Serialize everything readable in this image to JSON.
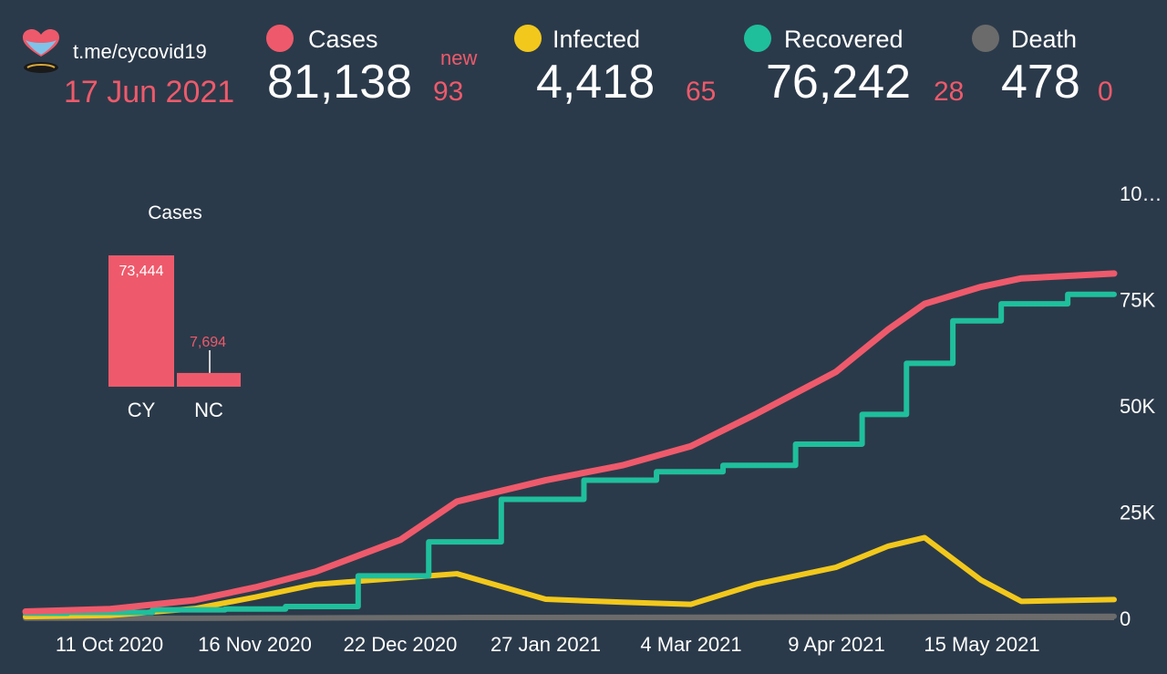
{
  "header": {
    "logo_icon": "cyprus-heart-icon",
    "channel": "t.me/cycovid19",
    "date": "17 Jun 2021"
  },
  "stats": [
    {
      "key": "cases",
      "label": "Cases",
      "value": "81,138",
      "delta": "93",
      "new_label": "new",
      "color": "#ee5a6b"
    },
    {
      "key": "infected",
      "label": "Infected",
      "value": "4,418",
      "delta": "65",
      "color": "#f2c81c"
    },
    {
      "key": "recovered",
      "label": "Recovered",
      "value": "76,242",
      "delta": "28",
      "color": "#1fbf9c"
    },
    {
      "key": "death",
      "label": "Death",
      "value": "478",
      "delta": "0",
      "color": "#6b6b6b"
    }
  ],
  "chart_data": [
    {
      "type": "bar",
      "title": "Cases",
      "categories": [
        "CY",
        "NC"
      ],
      "values": [
        73444,
        7694
      ],
      "value_labels": [
        "73,444",
        "7,694"
      ],
      "color": "#ee5a6b"
    },
    {
      "type": "line",
      "x_ticks": [
        "11 Oct 2020",
        "16 Nov 2020",
        "22 Dec 2020",
        "27 Jan 2021",
        "4 Mar 2021",
        "9 Apr 2021",
        "15 May 2021"
      ],
      "y_ticks": [
        "0",
        "25K",
        "50K",
        "75K",
        "10…"
      ],
      "ylim": [
        0,
        100000
      ],
      "x": [
        "2020-09-20",
        "2020-10-11",
        "2020-11-01",
        "2020-11-16",
        "2020-12-01",
        "2020-12-22",
        "2021-01-05",
        "2021-01-27",
        "2021-02-15",
        "2021-03-04",
        "2021-03-20",
        "2021-04-09",
        "2021-04-22",
        "2021-05-01",
        "2021-05-15",
        "2021-05-25",
        "2021-06-17"
      ],
      "series": [
        {
          "name": "Cases",
          "color": "#ee5a6b",
          "values": [
            1600,
            2200,
            4300,
            7300,
            11000,
            18500,
            27500,
            32500,
            36000,
            40500,
            48000,
            58000,
            68000,
            74000,
            78000,
            80000,
            81138
          ]
        },
        {
          "name": "Recovered",
          "color": "#1fbf9c",
          "values": [
            1200,
            1400,
            2000,
            2200,
            2800,
            10000,
            18000,
            28000,
            32500,
            34500,
            36000,
            41000,
            48000,
            60000,
            70000,
            74000,
            76242
          ]
        },
        {
          "name": "Infected",
          "color": "#f2c81c",
          "values": [
            400,
            700,
            2300,
            5000,
            8000,
            9500,
            10500,
            4500,
            3800,
            3300,
            8000,
            12000,
            17000,
            19000,
            9000,
            4000,
            4418
          ]
        },
        {
          "name": "Death",
          "color": "#6b6b6b",
          "values": [
            20,
            25,
            40,
            80,
            120,
            150,
            200,
            220,
            240,
            260,
            290,
            320,
            350,
            380,
            420,
            450,
            478
          ]
        }
      ]
    }
  ]
}
